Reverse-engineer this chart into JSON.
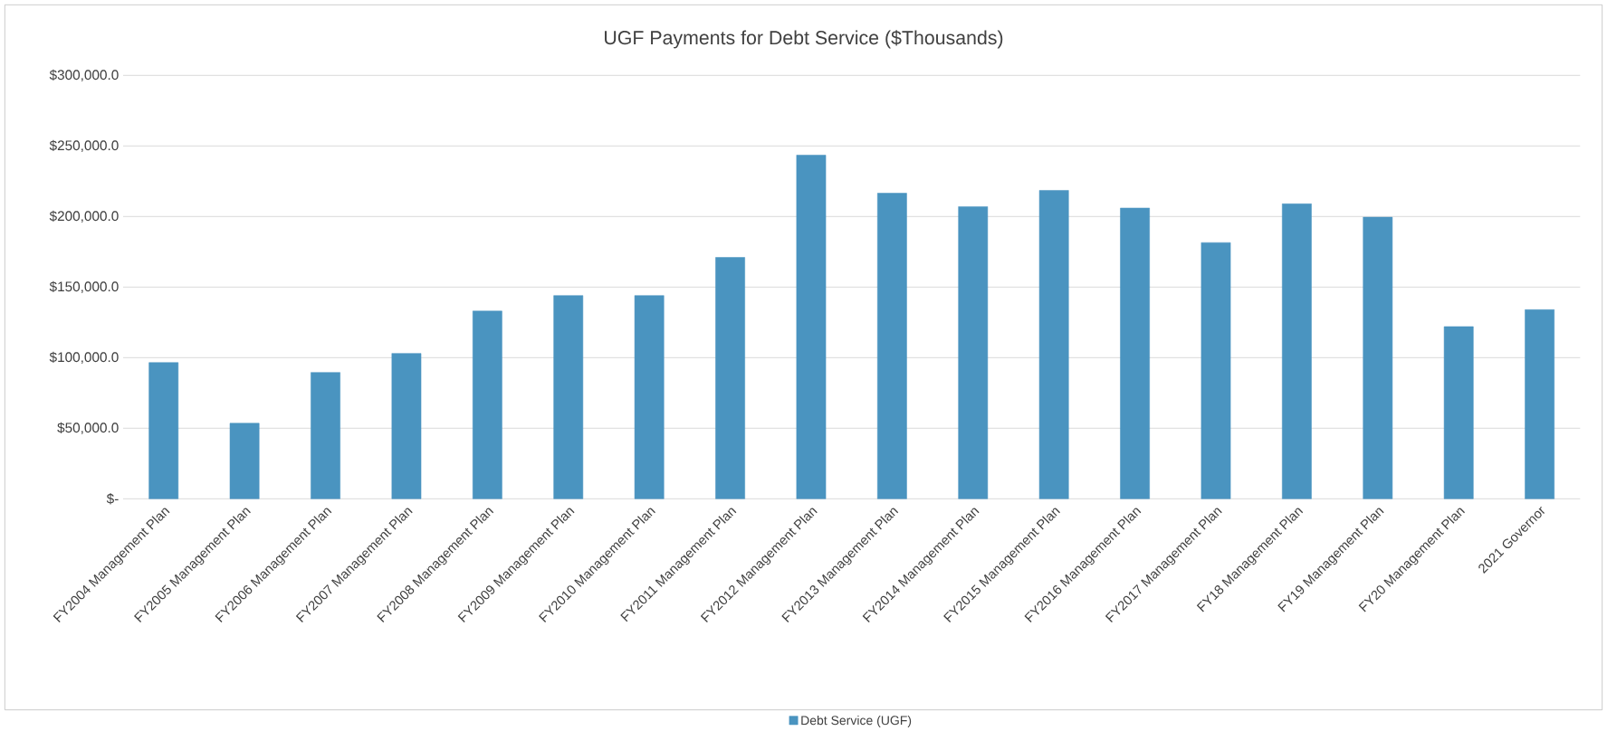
{
  "chart_data": {
    "type": "bar",
    "title": "UGF Payments for Debt Service ($Thousands)",
    "categories": [
      "FY2004 Management Plan",
      "FY2005 Management Plan",
      "FY2006 Management Plan",
      "FY2007 Management Plan",
      "FY2008 Management Plan",
      "FY2009 Management Plan",
      "FY2010 Management Plan",
      "FY2011 Management Plan",
      "FY2012 Management Plan",
      "FY2013 Management Plan",
      "FY2014 Management Plan",
      "FY2015 Management Plan",
      "FY2016 Management Plan",
      "FY2017 Management Plan",
      "FY18 Management Plan",
      "FY19 Management Plan",
      "FY20 Management Plan",
      "2021 Governor"
    ],
    "series": [
      {
        "name": "Debt Service (UGF)",
        "color": "#4a94c0",
        "values": [
          96500,
          53500,
          89500,
          103000,
          133000,
          144000,
          144000,
          171000,
          243500,
          216500,
          207000,
          218500,
          206000,
          181500,
          209000,
          199500,
          122000,
          134000
        ]
      }
    ],
    "ylim": [
      0,
      300000
    ],
    "yticks": [
      {
        "value": 0,
        "label": "$-"
      },
      {
        "value": 50000,
        "label": "$50,000.0"
      },
      {
        "value": 100000,
        "label": "$100,000.0"
      },
      {
        "value": 150000,
        "label": "$150,000.0"
      },
      {
        "value": 200000,
        "label": "$200,000.0"
      },
      {
        "value": 250000,
        "label": "$250,000.0"
      },
      {
        "value": 300000,
        "label": "$300,000.0"
      }
    ],
    "grid": "y",
    "legend": "bottom"
  }
}
